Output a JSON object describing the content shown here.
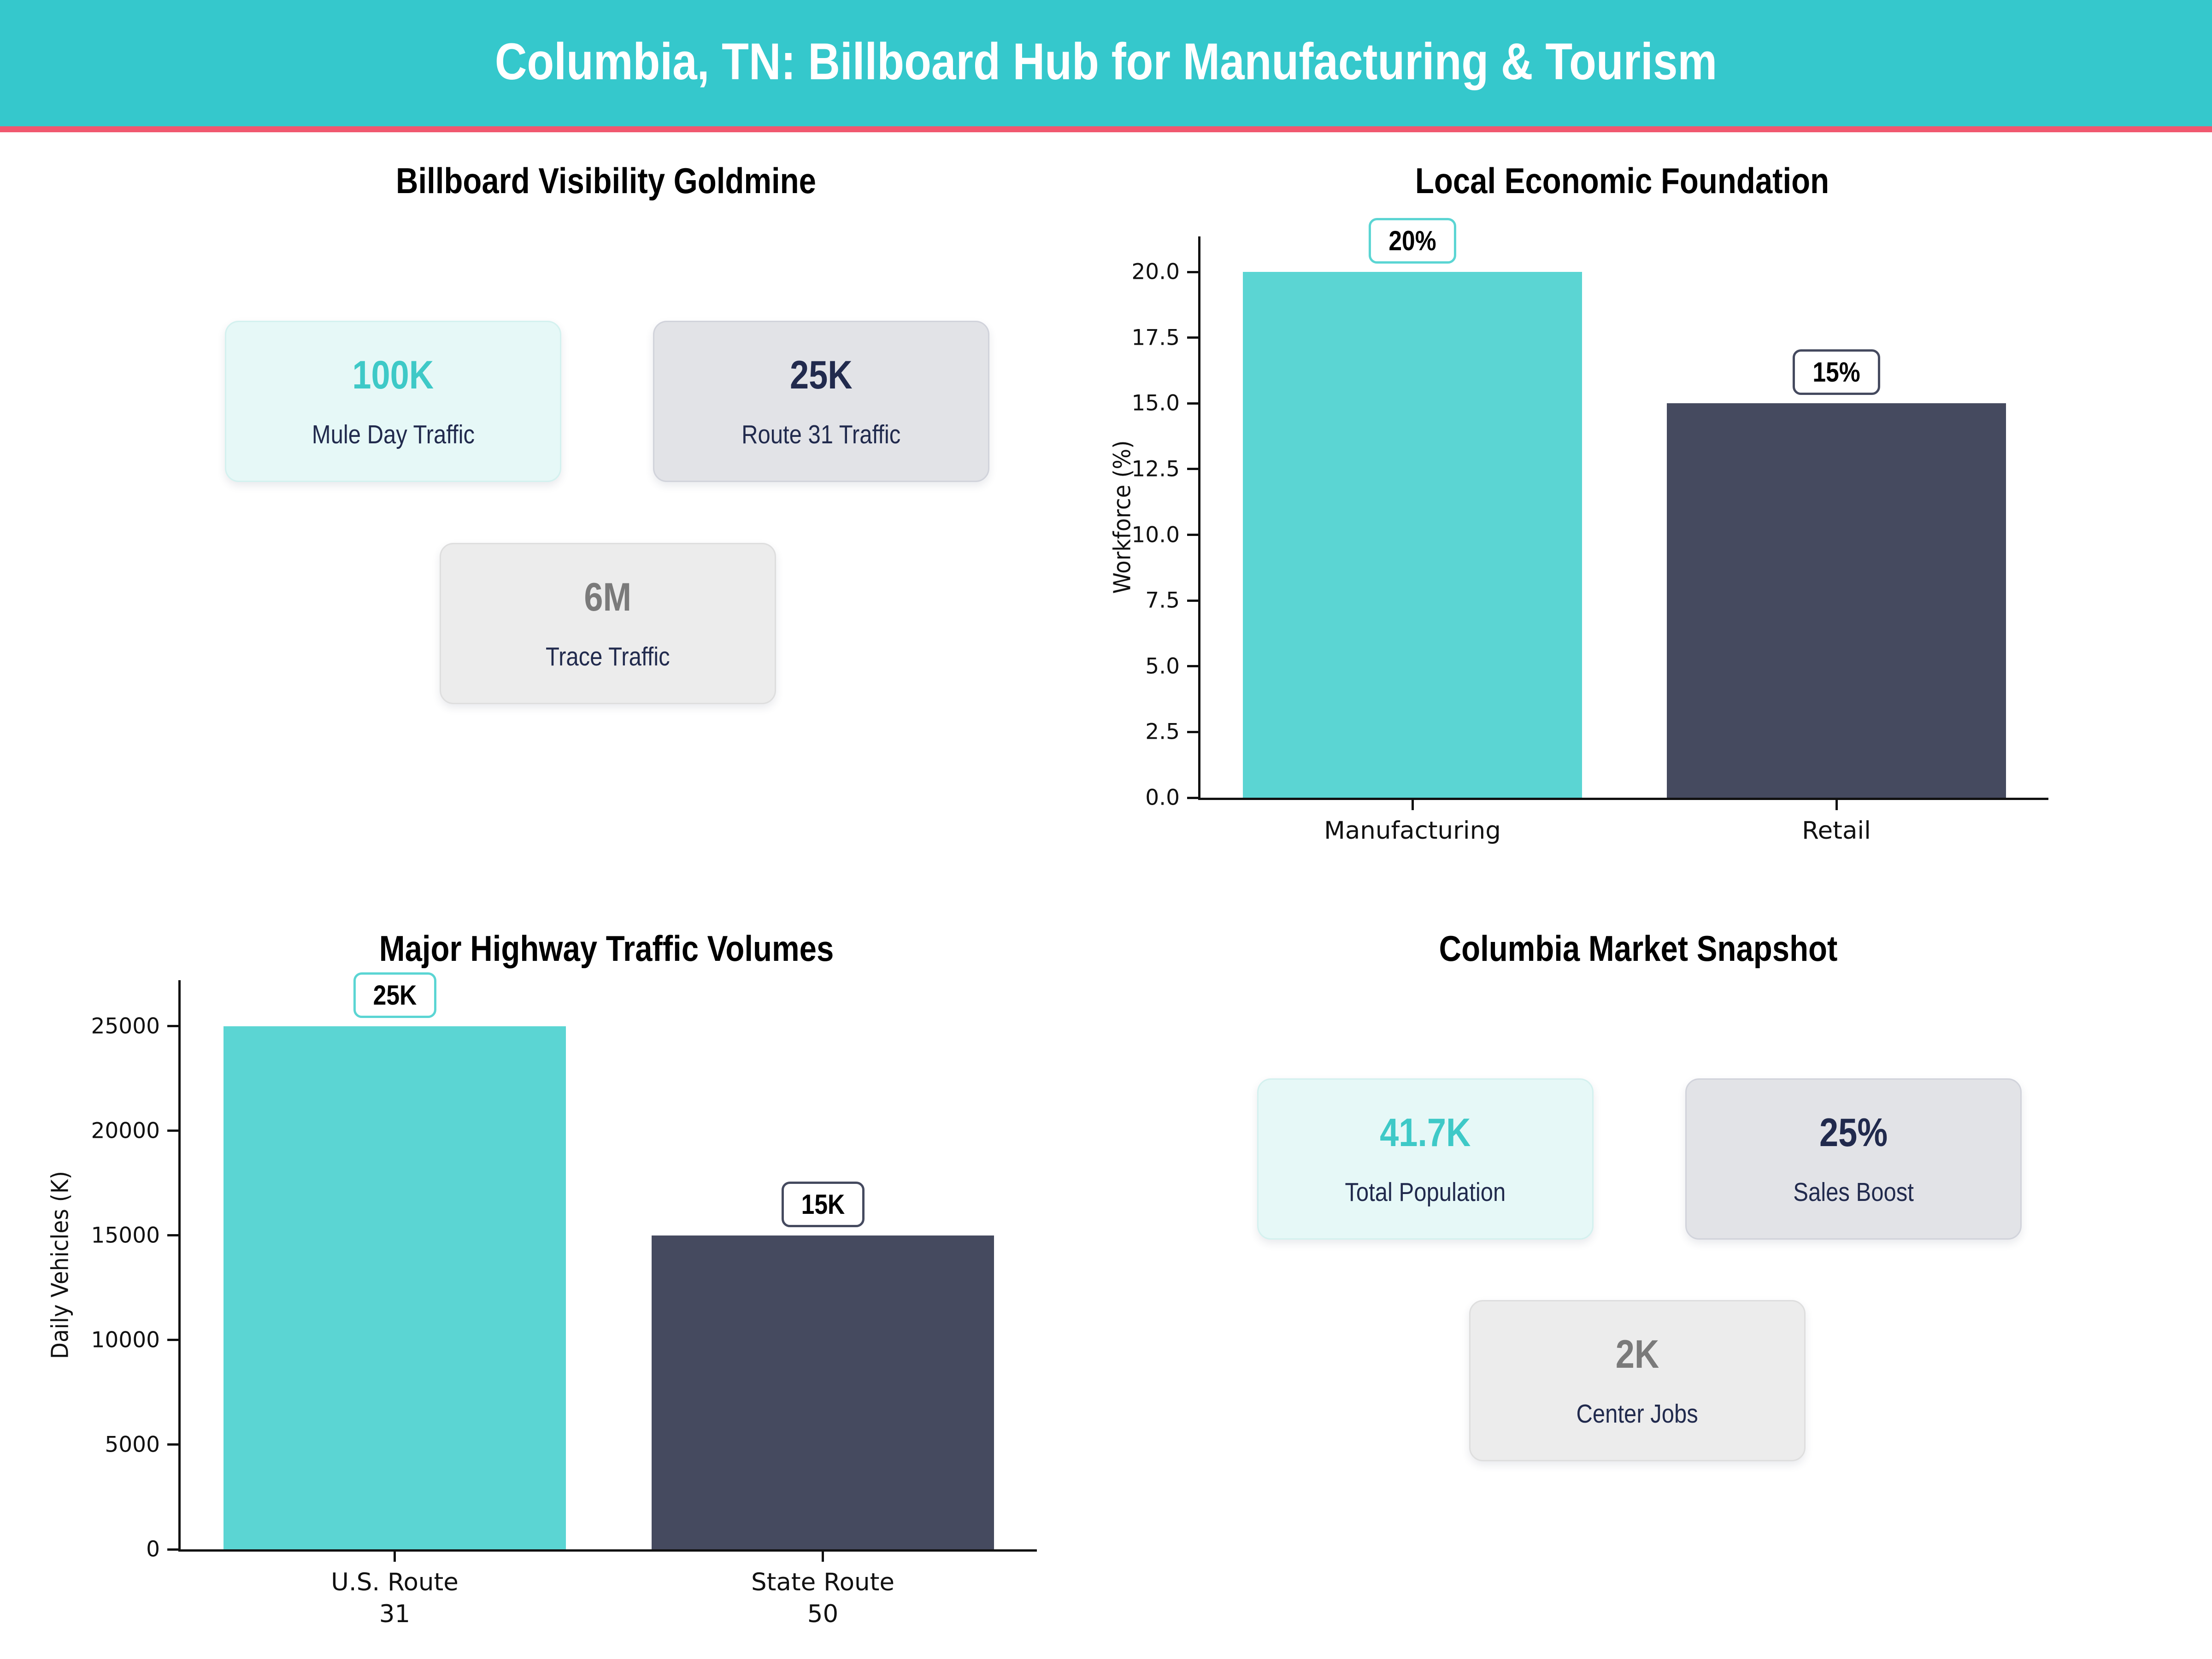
{
  "header": {
    "title": "Columbia, TN: Billboard Hub for Manufacturing & Tourism"
  },
  "colors": {
    "header_bg": "#35C8CC",
    "header_stripe": "#F0586F",
    "bar_teal": "#5BD5D3",
    "bar_navy": "#454A5F",
    "value_teal": "#3EC9C7",
    "value_navy": "#212A4D",
    "value_gray": "#7A7A7A",
    "card_teal_bg": "#E6F8F7",
    "card_gray_bg": "#E2E3E7",
    "card_lightgray_bg": "#ECECEC"
  },
  "quadrants": {
    "billboard": {
      "title": "Billboard Visibility Goldmine",
      "cards": [
        {
          "value": "100K",
          "label": "Mule Day Traffic",
          "style": "teal"
        },
        {
          "value": "25K",
          "label": "Route 31 Traffic",
          "style": "gray"
        },
        {
          "value": "6M",
          "label": "Trace Traffic",
          "style": "lightgray"
        }
      ]
    },
    "market": {
      "title": "Columbia Market Snapshot",
      "cards": [
        {
          "value": "41.7K",
          "label": "Total Population",
          "style": "teal"
        },
        {
          "value": "25%",
          "label": "Sales Boost",
          "style": "gray"
        },
        {
          "value": "2K",
          "label": "Center Jobs",
          "style": "lightgray"
        }
      ]
    }
  },
  "chart_data": [
    {
      "id": "economy",
      "type": "bar",
      "title": "Local Economic Foundation",
      "categories": [
        "Manufacturing",
        "Retail"
      ],
      "values": [
        20,
        15
      ],
      "bar_labels": [
        "20%",
        "15%"
      ],
      "bar_colors": [
        "#5BD5D3",
        "#454A5F"
      ],
      "xlabel": "",
      "ylabel": "Workforce (%)",
      "ylim": [
        0,
        21.35
      ],
      "yticks": [
        {
          "v": 0.0,
          "label": "0.0"
        },
        {
          "v": 2.5,
          "label": "2.5"
        },
        {
          "v": 5.0,
          "label": "5.0"
        },
        {
          "v": 7.5,
          "label": "7.5"
        },
        {
          "v": 10.0,
          "label": "10.0"
        },
        {
          "v": 12.5,
          "label": "12.5"
        },
        {
          "v": 15.0,
          "label": "15.0"
        },
        {
          "v": 17.5,
          "label": "17.5"
        },
        {
          "v": 20.0,
          "label": "20.0"
        }
      ],
      "grid": false,
      "legend": null
    },
    {
      "id": "traffic",
      "type": "bar",
      "title": "Major Highway Traffic Volumes",
      "categories": [
        "U.S. Route\n31",
        "State Route\n50"
      ],
      "values": [
        25000,
        15000
      ],
      "bar_labels": [
        "25K",
        "15K"
      ],
      "bar_colors": [
        "#5BD5D3",
        "#454A5F"
      ],
      "xlabel": "",
      "ylabel": "Daily Vehicles (K)",
      "ylim": [
        0,
        27200
      ],
      "yticks": [
        {
          "v": 0,
          "label": "0"
        },
        {
          "v": 5000,
          "label": "5000"
        },
        {
          "v": 10000,
          "label": "10000"
        },
        {
          "v": 15000,
          "label": "15000"
        },
        {
          "v": 20000,
          "label": "20000"
        },
        {
          "v": 25000,
          "label": "25000"
        }
      ],
      "grid": false,
      "legend": null
    }
  ]
}
